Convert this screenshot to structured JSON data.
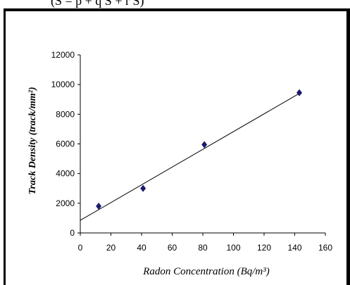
{
  "header_snippet": "(S = p + q S + r S)",
  "chart_data": {
    "type": "scatter",
    "title": "",
    "xlabel": "Radon Concentration (Bq/m³)",
    "ylabel": "Track Density (track/mm²)",
    "xlim": [
      0,
      160
    ],
    "ylim": [
      0,
      12000
    ],
    "x_ticks": [
      0,
      20,
      40,
      60,
      80,
      100,
      120,
      140,
      160
    ],
    "y_ticks": [
      0,
      2000,
      4000,
      6000,
      8000,
      10000,
      12000
    ],
    "grid": false,
    "legend": "none",
    "marker": "diamond",
    "marker_color": "#1a1a6e",
    "series": [
      {
        "x": [
          12,
          41,
          81,
          143
        ],
        "y": [
          1800,
          3000,
          5950,
          9450
        ]
      }
    ],
    "trendline": {
      "type": "linear",
      "x": [
        0,
        143
      ],
      "y": [
        850,
        9400
      ]
    }
  }
}
